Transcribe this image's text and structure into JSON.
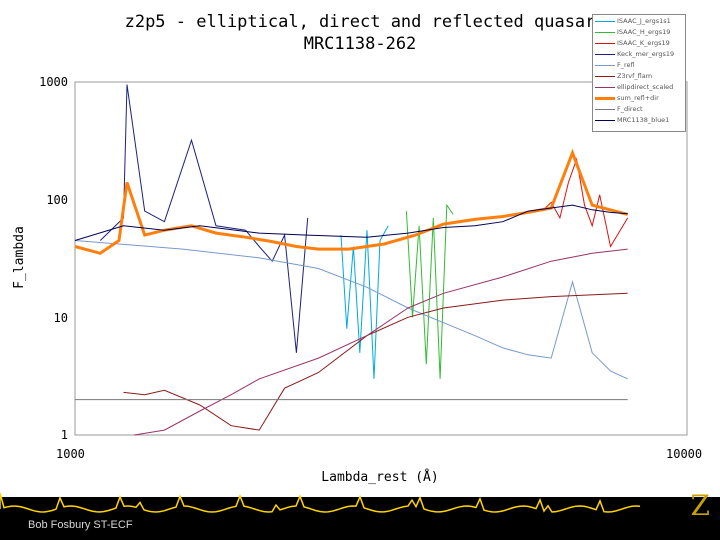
{
  "slide": {
    "footer_credit": "Bob Fosbury ST-ECF",
    "logo_text": "Z",
    "accent_color": "#ffd400"
  },
  "chart_data": {
    "type": "line",
    "title": "z2p5 - elliptical, direct and reflected quasar",
    "subtitle": "MRC1138-262",
    "xlabel": "Lambda_rest (Å)",
    "ylabel": "F_lambda",
    "xscale": "log",
    "yscale": "log",
    "xlim": [
      1000,
      10000
    ],
    "ylim": [
      1,
      1000
    ],
    "x_tick_labels": [
      "1000",
      "10000"
    ],
    "y_tick_labels": [
      "1000",
      "100",
      "10",
      "1"
    ],
    "grid": false,
    "legend_position": "top-right",
    "series": [
      {
        "name": "ISAAC_J_ergs1s1",
        "color": "#00aadd",
        "x": [
          2720,
          2780,
          2850,
          2920,
          3000,
          3080,
          3150,
          3250
        ],
        "y": [
          50,
          8,
          40,
          5,
          55,
          3,
          45,
          60
        ]
      },
      {
        "name": "ISAAC_H_ergs19",
        "color": "#33bb33",
        "x": [
          3480,
          3560,
          3650,
          3750,
          3850,
          3950,
          4050,
          4150
        ],
        "y": [
          80,
          10,
          60,
          4,
          70,
          3,
          90,
          75
        ]
      },
      {
        "name": "ISAAC_K_ergs19",
        "color": "#dd1111",
        "x": [
          5800,
          6000,
          6200,
          6400,
          6600,
          6800,
          7000,
          7200,
          7500,
          8000
        ],
        "y": [
          80,
          95,
          70,
          140,
          220,
          90,
          60,
          110,
          40,
          70
        ]
      },
      {
        "name": "Keck_mer_ergs19",
        "color": "#1a237e",
        "x": [
          1100,
          1200,
          1216,
          1300,
          1400,
          1550,
          1700,
          1900,
          2000,
          2100,
          2200,
          2300,
          2400
        ],
        "y": [
          45,
          70,
          950,
          80,
          65,
          320,
          60,
          55,
          40,
          30,
          50,
          5,
          70
        ]
      },
      {
        "name": "F_refl",
        "color": "#7799cc",
        "x": [
          1000,
          1500,
          2000,
          2500,
          3000,
          3500,
          4000,
          4500,
          5000,
          5500,
          6000,
          6500,
          7000,
          7500,
          8000
        ],
        "y": [
          45,
          38,
          32,
          26,
          18,
          12,
          9,
          7,
          5.5,
          4.8,
          4.5,
          20,
          5,
          3.5,
          3
        ]
      },
      {
        "name": "Z3rvf_flam",
        "color": "#8b1a1a",
        "x": [
          1200,
          1300,
          1400,
          1600,
          1800,
          2000,
          2200,
          2500,
          3000,
          3500,
          4000,
          5000,
          6000,
          8000
        ],
        "y": [
          2.3,
          2.2,
          2.4,
          1.8,
          1.2,
          1.1,
          2.5,
          3.4,
          7,
          10,
          12,
          14,
          15,
          16
        ]
      },
      {
        "name": "ellipdirect_scaled",
        "color": "#993366",
        "x": [
          1250,
          1400,
          1600,
          1800,
          2000,
          2500,
          3000,
          3500,
          4000,
          5000,
          6000,
          7000,
          8000
        ],
        "y": [
          1,
          1.1,
          1.6,
          2.2,
          3,
          4.5,
          7,
          12,
          16,
          22,
          30,
          35,
          38
        ]
      },
      {
        "name": "sum_refl+dir",
        "color": "#ff7f0e",
        "x": [
          1000,
          1100,
          1180,
          1216,
          1300,
          1400,
          1550,
          1700,
          1900,
          2100,
          2300,
          2500,
          2800,
          3200,
          3600,
          4000,
          4500,
          5000,
          5500,
          6000,
          6500,
          7000,
          8000
        ],
        "y": [
          40,
          35,
          45,
          140,
          50,
          55,
          60,
          52,
          48,
          44,
          40,
          38,
          38,
          42,
          50,
          62,
          68,
          72,
          78,
          85,
          250,
          90,
          75
        ]
      },
      {
        "name": "F_direct",
        "color": "#777777",
        "x": [
          1000,
          2000,
          4000,
          8000
        ],
        "y": [
          2,
          2,
          2,
          2
        ]
      },
      {
        "name": "MRC1138_blue1",
        "color": "#000055",
        "x": [
          1000,
          1200,
          1400,
          1600,
          2000,
          2400,
          3000,
          3500,
          4000,
          4500,
          5000,
          5500,
          6000,
          6500,
          7000,
          7500,
          8000
        ],
        "y": [
          45,
          60,
          55,
          60,
          52,
          50,
          48,
          52,
          58,
          60,
          65,
          80,
          85,
          90,
          82,
          78,
          76
        ]
      }
    ]
  }
}
